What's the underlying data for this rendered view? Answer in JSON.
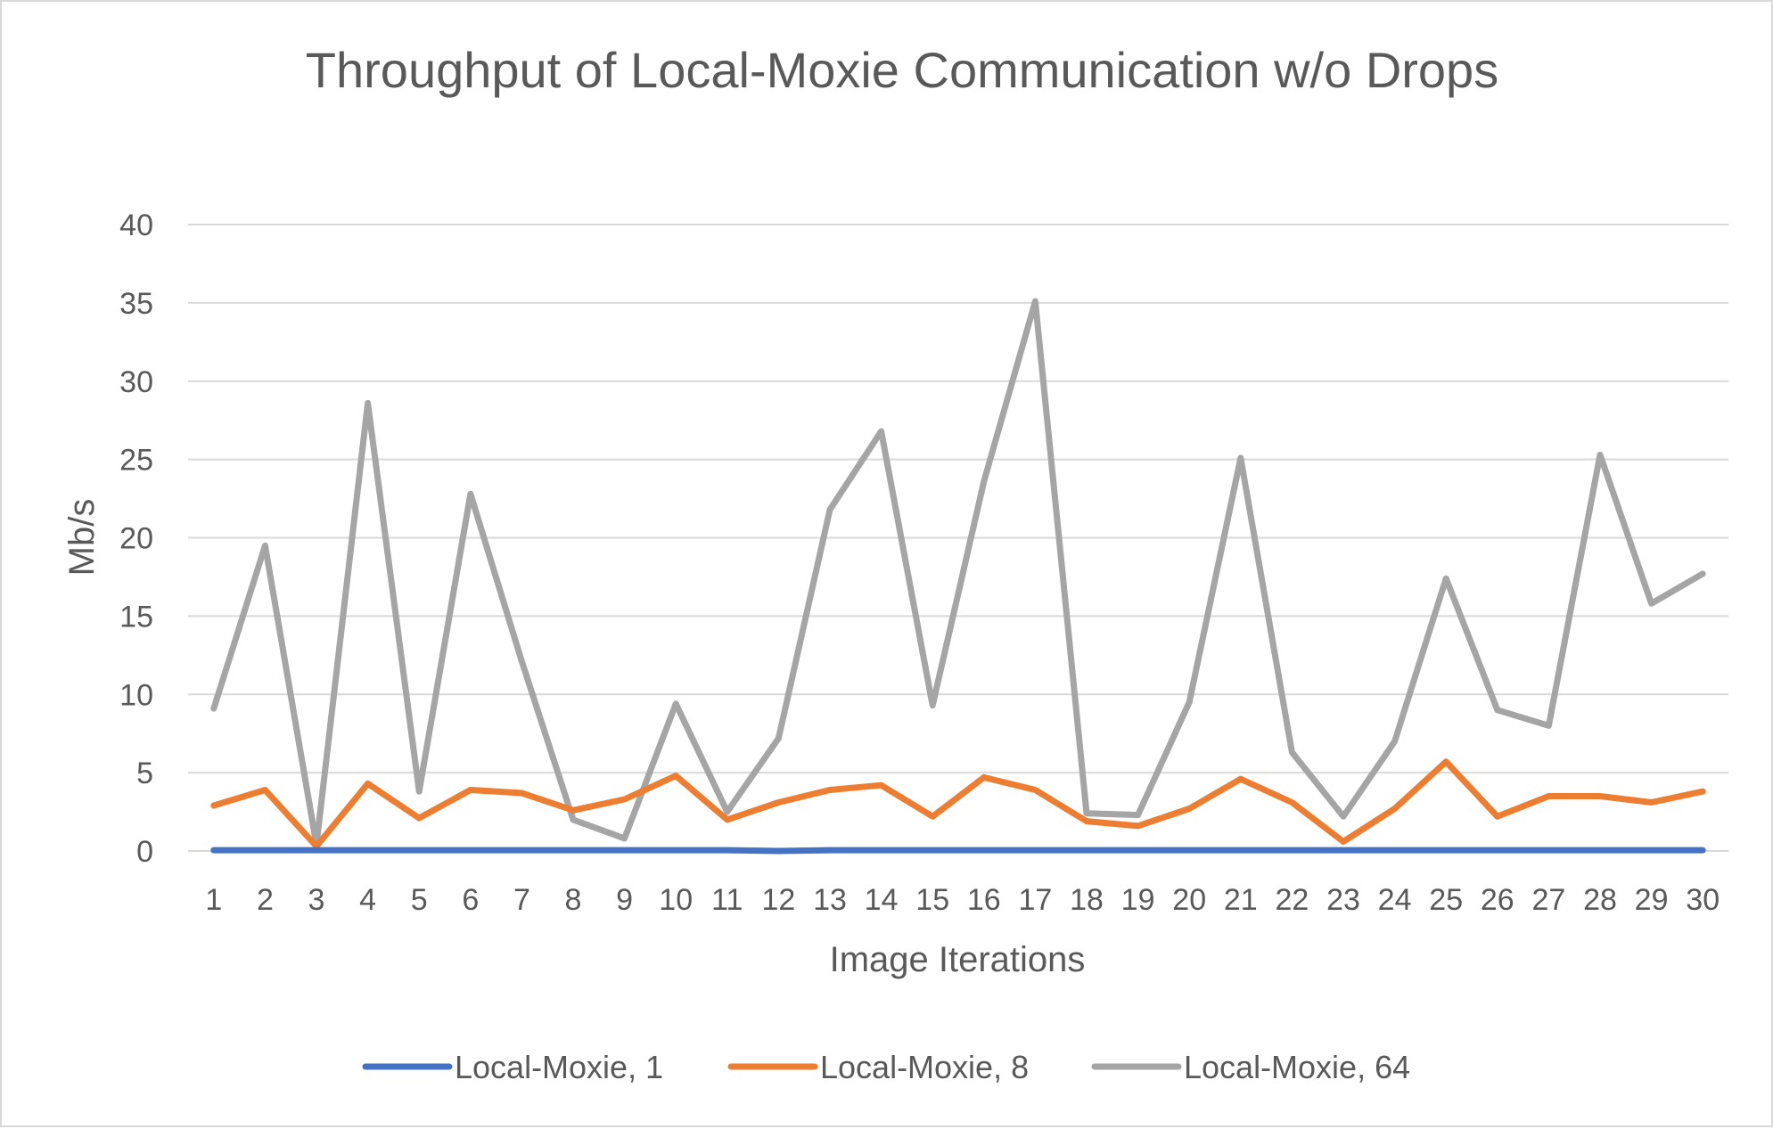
{
  "chart_data": {
    "type": "line",
    "title": "Throughput of Local-Moxie Communication w/o Drops",
    "xlabel": "Image Iterations",
    "ylabel": "Mb/s",
    "ylim": [
      0,
      40
    ],
    "yticks": [
      0,
      5,
      10,
      15,
      20,
      25,
      30,
      35,
      40
    ],
    "grid": true,
    "legend_position": "bottom",
    "categories": [
      "1",
      "2",
      "3",
      "4",
      "5",
      "6",
      "7",
      "8",
      "9",
      "10",
      "11",
      "12",
      "13",
      "14",
      "15",
      "16",
      "17",
      "18",
      "19",
      "20",
      "21",
      "22",
      "23",
      "24",
      "25",
      "26",
      "27",
      "28",
      "29",
      "30"
    ],
    "series": [
      {
        "name": "Local-Moxie, 1",
        "color": "#4472c4",
        "values": [
          0.05,
          0.05,
          0.05,
          0.05,
          0.05,
          0.05,
          0.05,
          0.05,
          0.05,
          0.05,
          0.05,
          0,
          0.05,
          0.05,
          0.05,
          0.05,
          0.05,
          0.05,
          0.05,
          0.05,
          0.05,
          0.05,
          0.05,
          0.05,
          0.05,
          0.05,
          0.05,
          0.05,
          0.05,
          0.05
        ]
      },
      {
        "name": "Local-Moxie, 8",
        "color": "#ed7d31",
        "values": [
          2.9,
          3.9,
          0.3,
          4.3,
          2.1,
          3.9,
          3.7,
          2.6,
          3.3,
          4.8,
          2.0,
          3.1,
          3.9,
          4.2,
          2.2,
          4.7,
          3.9,
          1.9,
          1.6,
          2.7,
          4.6,
          3.1,
          0.6,
          2.7,
          5.7,
          2.2,
          3.5,
          3.5,
          3.1,
          3.8
        ]
      },
      {
        "name": "Local-Moxie, 64",
        "color": "#a5a5a5",
        "values": [
          9.1,
          19.5,
          0.4,
          28.6,
          3.8,
          22.8,
          12.1,
          2.0,
          0.8,
          9.4,
          2.5,
          7.2,
          21.8,
          26.8,
          9.3,
          23.6,
          35.1,
          2.4,
          2.3,
          9.5,
          25.1,
          6.3,
          2.2,
          7.0,
          17.4,
          9.0,
          8.0,
          25.3,
          15.8,
          17.7
        ]
      }
    ]
  }
}
